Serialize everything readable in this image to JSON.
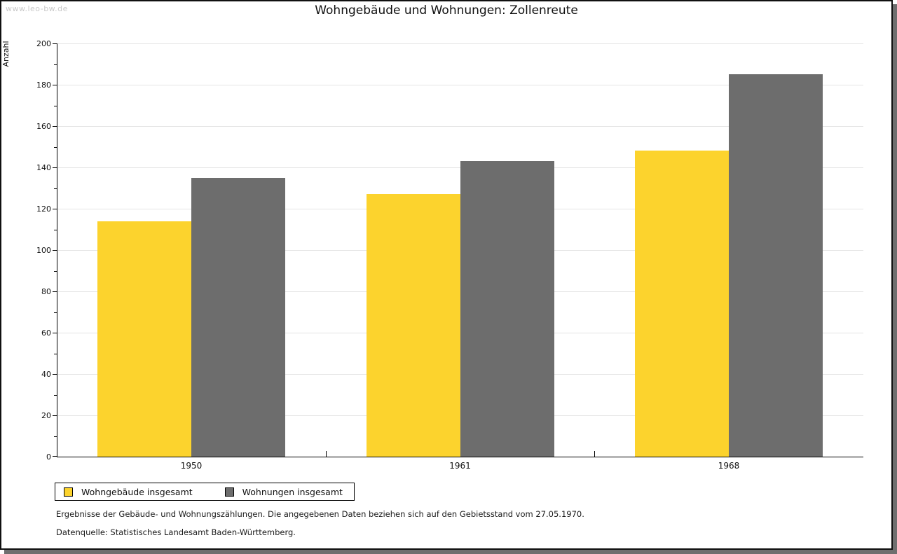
{
  "watermark": "www.leo-bw.de",
  "header": {
    "title": "Wohngebäude und Wohnungen: Zollenreute"
  },
  "chart_data": {
    "type": "bar",
    "title": "Wohngebäude und Wohnungen: Zollenreute",
    "xlabel": "",
    "ylabel": "Anzahl",
    "categories": [
      "1950",
      "1961",
      "1968"
    ],
    "series": [
      {
        "name": "Wohngebäude insgesamt",
        "color": "#fcd32d",
        "values": [
          114,
          127,
          148
        ]
      },
      {
        "name": "Wohnungen insgesamt",
        "color": "#6d6d6d",
        "values": [
          135,
          143,
          185
        ]
      }
    ],
    "ylim": [
      0,
      200
    ],
    "ytick_major_step": 20,
    "ytick_minor_step": 10,
    "grid": true,
    "gridline_color": "#e4e4e4",
    "legend_position": "bottom-left"
  },
  "footer": {
    "line1": "Ergebnisse der Gebäude- und Wohnungszählungen. Die angegebenen Daten beziehen sich auf den Gebietsstand vom 27.05.1970.",
    "line2": "Datenquelle: Statistisches Landesamt Baden-Württemberg."
  },
  "colors": {
    "frame_border": "#101010",
    "frame_shadow": "#6f6f6f",
    "watermark": "#c9c9c9",
    "series_yellow": "#fcd32d",
    "series_gray": "#6d6d6d"
  }
}
